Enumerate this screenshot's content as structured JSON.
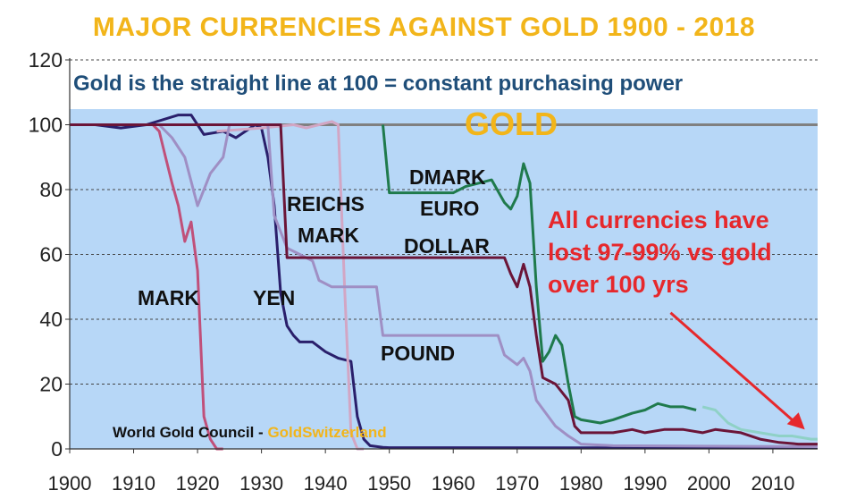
{
  "chart_data": {
    "type": "line",
    "title": "MAJOR CURRENCIES AGAINST GOLD 1900 - 2018",
    "subtitle": "Gold is the straight line at 100 = constant purchasing power",
    "xlim": [
      1900,
      2017
    ],
    "ylim": [
      0,
      120
    ],
    "x_ticks": [
      1900,
      1910,
      1920,
      1930,
      1940,
      1950,
      1960,
      1970,
      1980,
      1990,
      2000,
      2010
    ],
    "y_ticks": [
      0,
      20,
      40,
      60,
      80,
      100,
      120
    ],
    "grid": "horizontal dashed",
    "series": [
      {
        "name": "GOLD",
        "color": "#808080",
        "points": [
          [
            1900,
            100
          ],
          [
            2017,
            100
          ]
        ]
      },
      {
        "name": "MARK",
        "color": "#c0507a",
        "points": [
          [
            1900,
            100
          ],
          [
            1913,
            100
          ],
          [
            1914,
            98
          ],
          [
            1915,
            90
          ],
          [
            1916,
            82
          ],
          [
            1917,
            75
          ],
          [
            1918,
            64
          ],
          [
            1919,
            70
          ],
          [
            1920,
            55
          ],
          [
            1921,
            10
          ],
          [
            1922,
            3
          ],
          [
            1923,
            0
          ],
          [
            1924,
            0
          ]
        ]
      },
      {
        "name": "YEN",
        "color": "#2a1f6b",
        "points": [
          [
            1900,
            100
          ],
          [
            1904,
            100
          ],
          [
            1908,
            99
          ],
          [
            1912,
            100
          ],
          [
            1917,
            103
          ],
          [
            1919,
            103
          ],
          [
            1921,
            97
          ],
          [
            1924,
            98
          ],
          [
            1926,
            96
          ],
          [
            1929,
            100
          ],
          [
            1930,
            99
          ],
          [
            1931,
            90
          ],
          [
            1932,
            75
          ],
          [
            1933,
            48
          ],
          [
            1934,
            38
          ],
          [
            1935,
            35
          ],
          [
            1936,
            33
          ],
          [
            1938,
            33
          ],
          [
            1940,
            30
          ],
          [
            1942,
            28
          ],
          [
            1944,
            27
          ],
          [
            1945,
            10
          ],
          [
            1946,
            3
          ],
          [
            1947,
            1
          ],
          [
            1949,
            0.5
          ],
          [
            1950,
            0.4
          ],
          [
            2017,
            0.3
          ]
        ]
      },
      {
        "name": "REICHS MARK",
        "color": "#d2a6c4",
        "points": [
          [
            1923,
            98
          ],
          [
            1930,
            99
          ],
          [
            1935,
            100
          ],
          [
            1937,
            99
          ],
          [
            1939,
            100
          ],
          [
            1941,
            101
          ],
          [
            1942,
            100
          ],
          [
            1943,
            50
          ],
          [
            1944,
            5
          ],
          [
            1945,
            0
          ],
          [
            1946,
            0
          ]
        ]
      },
      {
        "name": "POUND",
        "color": "#9f8fc4",
        "points": [
          [
            1900,
            100
          ],
          [
            1914,
            100
          ],
          [
            1916,
            96
          ],
          [
            1918,
            90
          ],
          [
            1920,
            75
          ],
          [
            1922,
            85
          ],
          [
            1924,
            90
          ],
          [
            1925,
            100
          ],
          [
            1931,
            100
          ],
          [
            1932,
            72
          ],
          [
            1934,
            62
          ],
          [
            1936,
            60
          ],
          [
            1938,
            58
          ],
          [
            1939,
            52
          ],
          [
            1941,
            50
          ],
          [
            1945,
            50
          ],
          [
            1948,
            50
          ],
          [
            1949,
            35
          ],
          [
            1967,
            35
          ],
          [
            1968,
            29
          ],
          [
            1970,
            26
          ],
          [
            1971,
            28
          ],
          [
            1972,
            24
          ],
          [
            1973,
            15
          ],
          [
            1976,
            7
          ],
          [
            1978,
            4
          ],
          [
            1980,
            1.5
          ],
          [
            1985,
            1
          ],
          [
            2017,
            0.7
          ]
        ]
      },
      {
        "name": "DOLLAR",
        "color": "#6b1538",
        "points": [
          [
            1900,
            100
          ],
          [
            1933,
            100
          ],
          [
            1934,
            59
          ],
          [
            1944,
            59
          ],
          [
            1968,
            59
          ],
          [
            1969,
            54
          ],
          [
            1970,
            50
          ],
          [
            1971,
            57
          ],
          [
            1972,
            50
          ],
          [
            1973,
            35
          ],
          [
            1974,
            22
          ],
          [
            1976,
            20
          ],
          [
            1978,
            15
          ],
          [
            1979,
            7
          ],
          [
            1980,
            5
          ],
          [
            1982,
            5
          ],
          [
            1985,
            5
          ],
          [
            1988,
            6
          ],
          [
            1990,
            5
          ],
          [
            1993,
            6
          ],
          [
            1996,
            6
          ],
          [
            1999,
            5
          ],
          [
            2001,
            6
          ],
          [
            2005,
            5
          ],
          [
            2008,
            3
          ],
          [
            2011,
            2
          ],
          [
            2014,
            1.5
          ],
          [
            2017,
            1.5
          ]
        ]
      },
      {
        "name": "DMARK",
        "color": "#1f7a4c",
        "points": [
          [
            1949,
            100
          ],
          [
            1950,
            79
          ],
          [
            1960,
            79
          ],
          [
            1962,
            81
          ],
          [
            1964,
            82
          ],
          [
            1966,
            83
          ],
          [
            1968,
            76
          ],
          [
            1969,
            74
          ],
          [
            1970,
            78
          ],
          [
            1971,
            88
          ],
          [
            1972,
            82
          ],
          [
            1973,
            50
          ],
          [
            1974,
            27
          ],
          [
            1975,
            30
          ],
          [
            1976,
            35
          ],
          [
            1977,
            32
          ],
          [
            1978,
            20
          ],
          [
            1979,
            10
          ],
          [
            1980,
            9
          ],
          [
            1983,
            8
          ],
          [
            1985,
            9
          ],
          [
            1988,
            11
          ],
          [
            1990,
            12
          ],
          [
            1992,
            14
          ],
          [
            1994,
            13
          ],
          [
            1996,
            13
          ],
          [
            1998,
            12
          ]
        ]
      },
      {
        "name": "EURO",
        "color": "#8fd1c6",
        "points": [
          [
            1999,
            13
          ],
          [
            2001,
            12
          ],
          [
            2003,
            8
          ],
          [
            2005,
            6
          ],
          [
            2008,
            5
          ],
          [
            2011,
            4
          ],
          [
            2013,
            4
          ],
          [
            2016,
            3
          ],
          [
            2017,
            3
          ]
        ]
      }
    ],
    "annotations": [
      "All currencies have",
      "lost 97-99% vs gold",
      "over 100 yrs"
    ],
    "annotation_color": "#e6282c",
    "plot_bg": "#b7d7f7",
    "source": "World Gold Council - ",
    "source_brand": "GoldSwitzerland"
  },
  "labels": {
    "gold": "GOLD",
    "mark": "MARK",
    "yen": "YEN",
    "reichs": "REICHS",
    "reichs_mark": "MARK",
    "dmark": "DMARK",
    "euro": "EURO",
    "dollar": "DOLLAR",
    "pound": "POUND"
  }
}
